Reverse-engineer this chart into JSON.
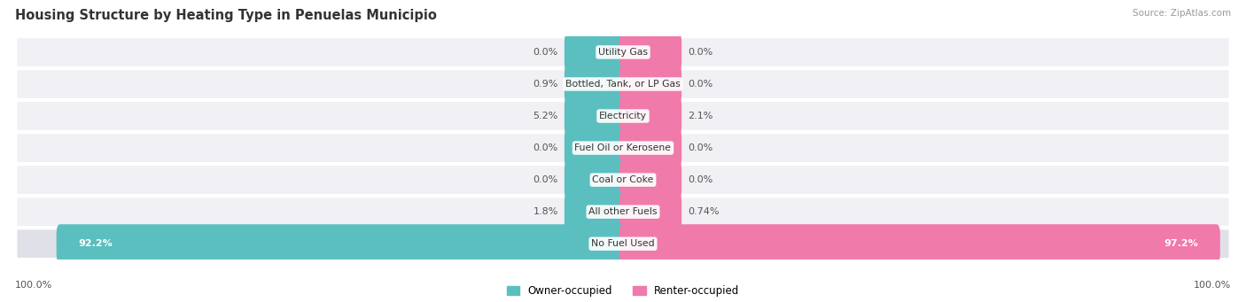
{
  "title": "Housing Structure by Heating Type in Penuelas Municipio",
  "source": "Source: ZipAtlas.com",
  "categories": [
    "Utility Gas",
    "Bottled, Tank, or LP Gas",
    "Electricity",
    "Fuel Oil or Kerosene",
    "Coal or Coke",
    "All other Fuels",
    "No Fuel Used"
  ],
  "owner_values": [
    0.0,
    0.9,
    5.2,
    0.0,
    0.0,
    1.8,
    92.2
  ],
  "renter_values": [
    0.0,
    0.0,
    2.1,
    0.0,
    0.0,
    0.74,
    97.2
  ],
  "owner_color": "#5bbfbf",
  "renter_color": "#f07aaa",
  "owner_label": "Owner-occupied",
  "renter_label": "Renter-occupied",
  "max_value": 100.0,
  "min_bar_width": 4.5,
  "figsize": [
    14.06,
    3.41
  ],
  "dpi": 100
}
